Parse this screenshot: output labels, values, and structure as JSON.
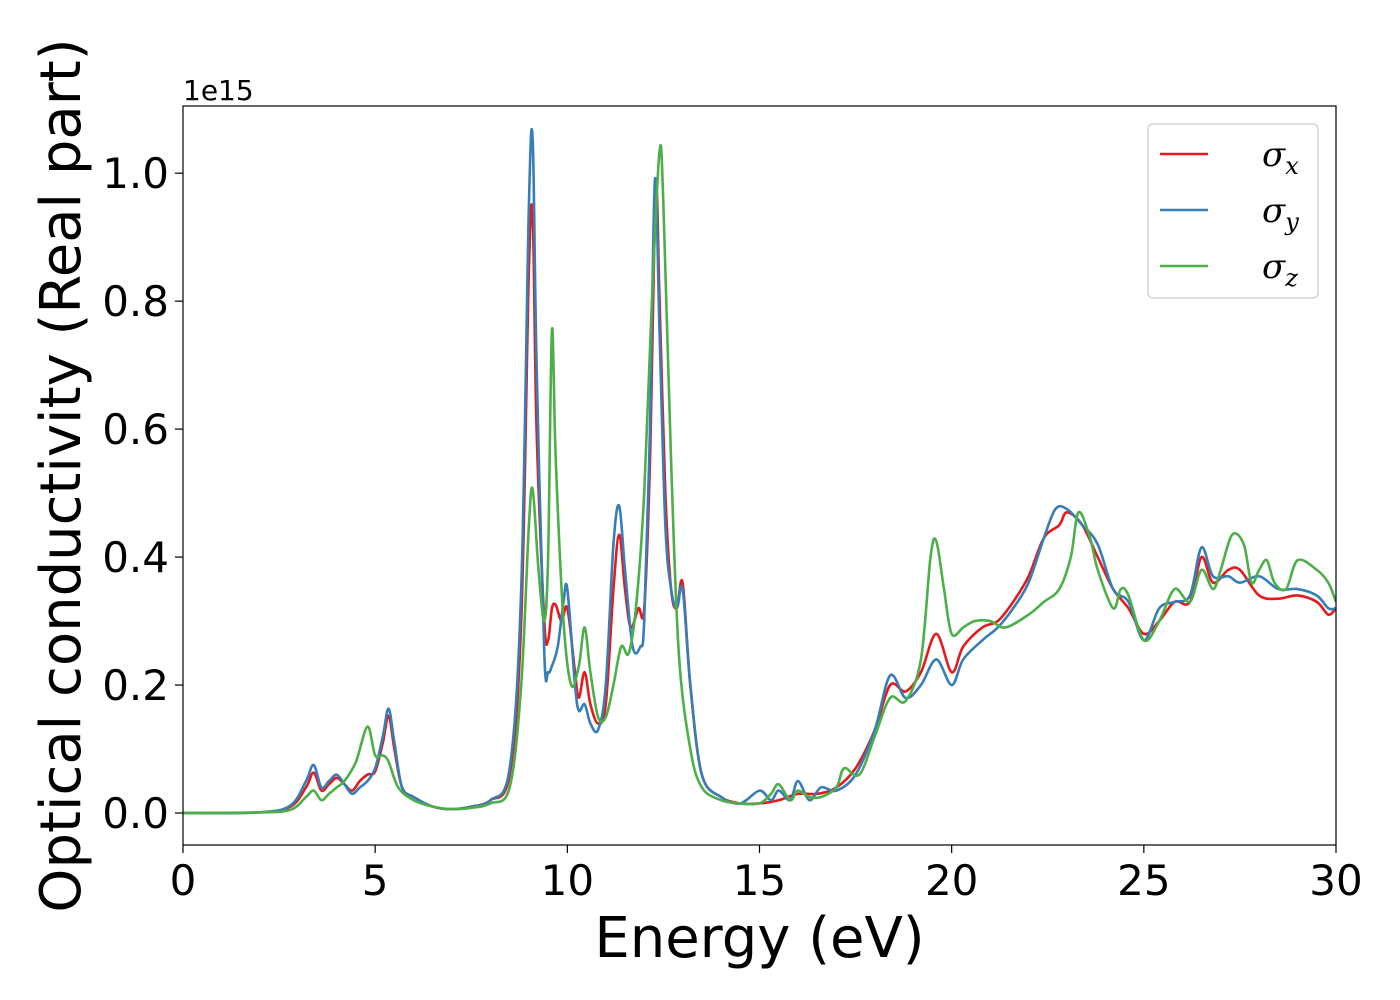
{
  "chart_data": {
    "type": "line",
    "title": "",
    "xlabel": "Energy (eV)",
    "ylabel": "Optical conductivity (Real part)",
    "offset_text": "1e15",
    "xlim": [
      0,
      30
    ],
    "ylim": [
      -0.05,
      1.105
    ],
    "xticks": [
      0,
      5,
      10,
      15,
      20,
      25,
      30
    ],
    "yticks": [
      0.0,
      0.2,
      0.4,
      0.6,
      0.8,
      1.0
    ],
    "xtick_labels": [
      "0",
      "5",
      "10",
      "15",
      "20",
      "25",
      "30"
    ],
    "ytick_labels": [
      "0.0",
      "0.2",
      "0.4",
      "0.6",
      "0.8",
      "1.0"
    ],
    "grid": false,
    "legend_position": "top-right",
    "series": [
      {
        "name": "σx",
        "symbol": "σ",
        "subscript": "x",
        "color": "#e41a1c",
        "points": [
          [
            0,
            0
          ],
          [
            2,
            0.001
          ],
          [
            2.8,
            0.01
          ],
          [
            3.2,
            0.04
          ],
          [
            3.4,
            0.063
          ],
          [
            3.6,
            0.035
          ],
          [
            3.8,
            0.045
          ],
          [
            4.0,
            0.055
          ],
          [
            4.2,
            0.045
          ],
          [
            4.4,
            0.035
          ],
          [
            4.6,
            0.05
          ],
          [
            4.8,
            0.06
          ],
          [
            5.0,
            0.065
          ],
          [
            5.2,
            0.11
          ],
          [
            5.35,
            0.152
          ],
          [
            5.5,
            0.1
          ],
          [
            5.7,
            0.04
          ],
          [
            6.0,
            0.025
          ],
          [
            6.5,
            0.01
          ],
          [
            7.0,
            0.006
          ],
          [
            7.5,
            0.01
          ],
          [
            8.0,
            0.02
          ],
          [
            8.5,
            0.06
          ],
          [
            8.8,
            0.3
          ],
          [
            9.0,
            0.85
          ],
          [
            9.1,
            0.93
          ],
          [
            9.2,
            0.6
          ],
          [
            9.4,
            0.3
          ],
          [
            9.5,
            0.27
          ],
          [
            9.6,
            0.32
          ],
          [
            9.7,
            0.325
          ],
          [
            9.85,
            0.3
          ],
          [
            10.0,
            0.32
          ],
          [
            10.2,
            0.22
          ],
          [
            10.3,
            0.18
          ],
          [
            10.45,
            0.22
          ],
          [
            10.6,
            0.17
          ],
          [
            10.8,
            0.14
          ],
          [
            11.0,
            0.17
          ],
          [
            11.2,
            0.35
          ],
          [
            11.35,
            0.435
          ],
          [
            11.5,
            0.35
          ],
          [
            11.65,
            0.29
          ],
          [
            11.85,
            0.32
          ],
          [
            12.0,
            0.32
          ],
          [
            12.15,
            0.55
          ],
          [
            12.3,
            0.97
          ],
          [
            12.4,
            0.8
          ],
          [
            12.55,
            0.5
          ],
          [
            12.7,
            0.35
          ],
          [
            12.85,
            0.32
          ],
          [
            13.0,
            0.36
          ],
          [
            13.2,
            0.2
          ],
          [
            13.5,
            0.06
          ],
          [
            14.0,
            0.025
          ],
          [
            14.5,
            0.015
          ],
          [
            15.0,
            0.015
          ],
          [
            15.5,
            0.02
          ],
          [
            16.0,
            0.03
          ],
          [
            16.5,
            0.03
          ],
          [
            17.0,
            0.04
          ],
          [
            17.5,
            0.07
          ],
          [
            18.0,
            0.13
          ],
          [
            18.4,
            0.2
          ],
          [
            18.8,
            0.19
          ],
          [
            19.2,
            0.22
          ],
          [
            19.6,
            0.28
          ],
          [
            20.0,
            0.22
          ],
          [
            20.3,
            0.26
          ],
          [
            20.8,
            0.29
          ],
          [
            21.2,
            0.3
          ],
          [
            21.6,
            0.33
          ],
          [
            22.0,
            0.37
          ],
          [
            22.4,
            0.43
          ],
          [
            22.8,
            0.45
          ],
          [
            23.0,
            0.47
          ],
          [
            23.4,
            0.45
          ],
          [
            23.8,
            0.4
          ],
          [
            24.2,
            0.35
          ],
          [
            24.6,
            0.32
          ],
          [
            25.0,
            0.28
          ],
          [
            25.4,
            0.3
          ],
          [
            25.8,
            0.33
          ],
          [
            26.2,
            0.33
          ],
          [
            26.5,
            0.4
          ],
          [
            26.8,
            0.36
          ],
          [
            27.2,
            0.38
          ],
          [
            27.5,
            0.38
          ],
          [
            28.0,
            0.34
          ],
          [
            28.5,
            0.335
          ],
          [
            29.0,
            0.34
          ],
          [
            29.5,
            0.33
          ],
          [
            29.8,
            0.31
          ],
          [
            30.0,
            0.32
          ]
        ]
      },
      {
        "name": "σy",
        "symbol": "σ",
        "subscript": "y",
        "color": "#377eb8",
        "points": [
          [
            0,
            0
          ],
          [
            2,
            0.001
          ],
          [
            2.8,
            0.012
          ],
          [
            3.2,
            0.05
          ],
          [
            3.4,
            0.075
          ],
          [
            3.6,
            0.04
          ],
          [
            3.8,
            0.05
          ],
          [
            4.0,
            0.06
          ],
          [
            4.2,
            0.045
          ],
          [
            4.4,
            0.03
          ],
          [
            4.6,
            0.04
          ],
          [
            4.8,
            0.05
          ],
          [
            5.0,
            0.07
          ],
          [
            5.2,
            0.12
          ],
          [
            5.35,
            0.163
          ],
          [
            5.5,
            0.11
          ],
          [
            5.7,
            0.04
          ],
          [
            6.0,
            0.025
          ],
          [
            6.5,
            0.01
          ],
          [
            7.0,
            0.006
          ],
          [
            7.5,
            0.01
          ],
          [
            8.0,
            0.02
          ],
          [
            8.5,
            0.07
          ],
          [
            8.8,
            0.35
          ],
          [
            9.0,
            0.95
          ],
          [
            9.1,
            1.05
          ],
          [
            9.2,
            0.7
          ],
          [
            9.4,
            0.25
          ],
          [
            9.5,
            0.22
          ],
          [
            9.6,
            0.23
          ],
          [
            9.75,
            0.26
          ],
          [
            9.9,
            0.33
          ],
          [
            10.0,
            0.35
          ],
          [
            10.2,
            0.2
          ],
          [
            10.3,
            0.16
          ],
          [
            10.45,
            0.17
          ],
          [
            10.6,
            0.14
          ],
          [
            10.8,
            0.13
          ],
          [
            11.0,
            0.2
          ],
          [
            11.2,
            0.42
          ],
          [
            11.35,
            0.48
          ],
          [
            11.5,
            0.38
          ],
          [
            11.7,
            0.26
          ],
          [
            11.9,
            0.26
          ],
          [
            12.0,
            0.3
          ],
          [
            12.15,
            0.6
          ],
          [
            12.28,
            0.99
          ],
          [
            12.4,
            0.75
          ],
          [
            12.55,
            0.45
          ],
          [
            12.7,
            0.35
          ],
          [
            12.85,
            0.32
          ],
          [
            13.0,
            0.35
          ],
          [
            13.2,
            0.2
          ],
          [
            13.5,
            0.06
          ],
          [
            14.0,
            0.025
          ],
          [
            14.5,
            0.015
          ],
          [
            15.0,
            0.035
          ],
          [
            15.3,
            0.02
          ],
          [
            15.5,
            0.035
          ],
          [
            15.8,
            0.02
          ],
          [
            16.0,
            0.05
          ],
          [
            16.3,
            0.02
          ],
          [
            16.6,
            0.04
          ],
          [
            17.0,
            0.035
          ],
          [
            17.5,
            0.06
          ],
          [
            18.0,
            0.13
          ],
          [
            18.4,
            0.215
          ],
          [
            18.8,
            0.18
          ],
          [
            19.2,
            0.2
          ],
          [
            19.6,
            0.24
          ],
          [
            20.0,
            0.2
          ],
          [
            20.3,
            0.24
          ],
          [
            20.8,
            0.27
          ],
          [
            21.2,
            0.29
          ],
          [
            21.6,
            0.32
          ],
          [
            22.0,
            0.36
          ],
          [
            22.4,
            0.43
          ],
          [
            22.7,
            0.475
          ],
          [
            23.0,
            0.475
          ],
          [
            23.4,
            0.45
          ],
          [
            23.8,
            0.42
          ],
          [
            24.2,
            0.35
          ],
          [
            24.6,
            0.33
          ],
          [
            25.0,
            0.27
          ],
          [
            25.4,
            0.32
          ],
          [
            25.8,
            0.33
          ],
          [
            26.2,
            0.34
          ],
          [
            26.5,
            0.415
          ],
          [
            26.8,
            0.37
          ],
          [
            27.2,
            0.37
          ],
          [
            27.5,
            0.36
          ],
          [
            28.0,
            0.37
          ],
          [
            28.5,
            0.35
          ],
          [
            29.0,
            0.35
          ],
          [
            29.5,
            0.34
          ],
          [
            29.8,
            0.32
          ],
          [
            30.0,
            0.32
          ]
        ]
      },
      {
        "name": "σz",
        "symbol": "σ",
        "subscript": "z",
        "color": "#4daf4a",
        "points": [
          [
            0,
            0
          ],
          [
            2,
            0.001
          ],
          [
            2.8,
            0.005
          ],
          [
            3.2,
            0.025
          ],
          [
            3.4,
            0.035
          ],
          [
            3.6,
            0.02
          ],
          [
            3.8,
            0.03
          ],
          [
            4.0,
            0.04
          ],
          [
            4.2,
            0.05
          ],
          [
            4.5,
            0.08
          ],
          [
            4.8,
            0.135
          ],
          [
            5.0,
            0.09
          ],
          [
            5.2,
            0.09
          ],
          [
            5.35,
            0.08
          ],
          [
            5.6,
            0.04
          ],
          [
            6.0,
            0.02
          ],
          [
            6.5,
            0.01
          ],
          [
            7.0,
            0.006
          ],
          [
            7.5,
            0.008
          ],
          [
            8.0,
            0.015
          ],
          [
            8.5,
            0.04
          ],
          [
            8.8,
            0.2
          ],
          [
            9.0,
            0.45
          ],
          [
            9.1,
            0.505
          ],
          [
            9.25,
            0.38
          ],
          [
            9.4,
            0.3
          ],
          [
            9.5,
            0.4
          ],
          [
            9.6,
            0.755
          ],
          [
            9.7,
            0.55
          ],
          [
            9.9,
            0.3
          ],
          [
            10.1,
            0.2
          ],
          [
            10.3,
            0.23
          ],
          [
            10.45,
            0.29
          ],
          [
            10.6,
            0.22
          ],
          [
            10.8,
            0.15
          ],
          [
            11.0,
            0.15
          ],
          [
            11.2,
            0.2
          ],
          [
            11.4,
            0.26
          ],
          [
            11.6,
            0.25
          ],
          [
            11.8,
            0.33
          ],
          [
            12.0,
            0.5
          ],
          [
            12.2,
            0.8
          ],
          [
            12.4,
            1.035
          ],
          [
            12.5,
            0.95
          ],
          [
            12.7,
            0.55
          ],
          [
            12.9,
            0.25
          ],
          [
            13.2,
            0.1
          ],
          [
            13.5,
            0.04
          ],
          [
            14.0,
            0.02
          ],
          [
            14.5,
            0.015
          ],
          [
            15.0,
            0.015
          ],
          [
            15.3,
            0.03
          ],
          [
            15.5,
            0.045
          ],
          [
            15.8,
            0.02
          ],
          [
            16.0,
            0.035
          ],
          [
            16.3,
            0.025
          ],
          [
            16.6,
            0.025
          ],
          [
            17.0,
            0.04
          ],
          [
            17.2,
            0.07
          ],
          [
            17.6,
            0.06
          ],
          [
            18.0,
            0.12
          ],
          [
            18.4,
            0.18
          ],
          [
            18.8,
            0.175
          ],
          [
            19.2,
            0.24
          ],
          [
            19.45,
            0.4
          ],
          [
            19.6,
            0.425
          ],
          [
            19.8,
            0.35
          ],
          [
            20.0,
            0.28
          ],
          [
            20.3,
            0.29
          ],
          [
            20.6,
            0.3
          ],
          [
            21.0,
            0.3
          ],
          [
            21.4,
            0.29
          ],
          [
            22.0,
            0.31
          ],
          [
            22.4,
            0.33
          ],
          [
            22.8,
            0.35
          ],
          [
            23.1,
            0.4
          ],
          [
            23.3,
            0.47
          ],
          [
            23.6,
            0.43
          ],
          [
            23.8,
            0.38
          ],
          [
            24.2,
            0.32
          ],
          [
            24.4,
            0.35
          ],
          [
            24.6,
            0.34
          ],
          [
            25.0,
            0.27
          ],
          [
            25.4,
            0.3
          ],
          [
            25.8,
            0.35
          ],
          [
            26.2,
            0.33
          ],
          [
            26.5,
            0.38
          ],
          [
            26.8,
            0.35
          ],
          [
            27.0,
            0.38
          ],
          [
            27.3,
            0.435
          ],
          [
            27.6,
            0.42
          ],
          [
            27.8,
            0.36
          ],
          [
            28.0,
            0.38
          ],
          [
            28.2,
            0.395
          ],
          [
            28.4,
            0.36
          ],
          [
            28.7,
            0.35
          ],
          [
            29.0,
            0.395
          ],
          [
            29.5,
            0.38
          ],
          [
            29.8,
            0.36
          ],
          [
            30.0,
            0.33
          ]
        ]
      }
    ]
  }
}
